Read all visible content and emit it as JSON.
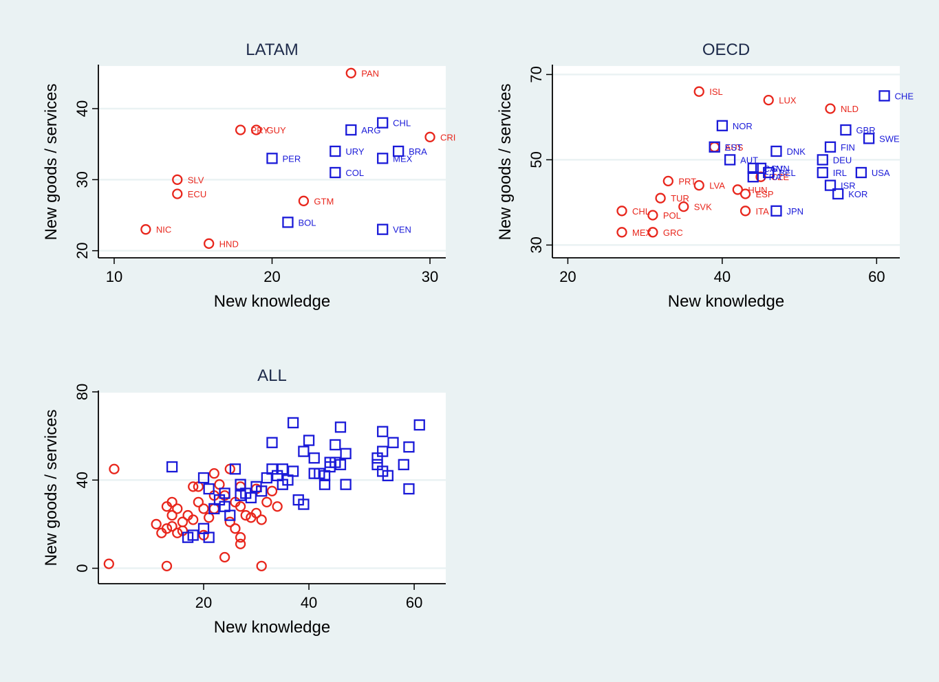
{
  "colors": {
    "background": "#eaf2f3",
    "plot_background": "#ffffff",
    "grid": "#eaf2f3",
    "circle_series": "#e8261c",
    "square_series": "#1a1ad8"
  },
  "chart_data": [
    {
      "type": "scatter",
      "title": "LATAM",
      "xlabel": "New knowledge",
      "ylabel": "New goods / services",
      "xlim": [
        9,
        31
      ],
      "ylim": [
        19,
        46
      ],
      "xticks": [
        10,
        20,
        30
      ],
      "yticks": [
        20,
        30,
        40
      ],
      "grid": true,
      "series": [
        {
          "name": "circles",
          "marker": "circle",
          "points": [
            {
              "label": "PAN",
              "x": 25,
              "y": 45
            },
            {
              "label": "PRY",
              "x": 18,
              "y": 37
            },
            {
              "label": "GUY",
              "x": 19,
              "y": 37
            },
            {
              "label": "CRI",
              "x": 30,
              "y": 36
            },
            {
              "label": "SLV",
              "x": 14,
              "y": 30
            },
            {
              "label": "ECU",
              "x": 14,
              "y": 28
            },
            {
              "label": "GTM",
              "x": 22,
              "y": 27
            },
            {
              "label": "NIC",
              "x": 12,
              "y": 23
            },
            {
              "label": "HND",
              "x": 16,
              "y": 21
            }
          ]
        },
        {
          "name": "squares",
          "marker": "square",
          "points": [
            {
              "label": "CHL",
              "x": 27,
              "y": 38
            },
            {
              "label": "ARG",
              "x": 25,
              "y": 37
            },
            {
              "label": "URY",
              "x": 24,
              "y": 34
            },
            {
              "label": "BRA",
              "x": 28,
              "y": 34
            },
            {
              "label": "PER",
              "x": 20,
              "y": 33
            },
            {
              "label": "MEX",
              "x": 27,
              "y": 33
            },
            {
              "label": "COL",
              "x": 24,
              "y": 31
            },
            {
              "label": "BOL",
              "x": 21,
              "y": 24
            },
            {
              "label": "VEN",
              "x": 27,
              "y": 23
            }
          ]
        }
      ]
    },
    {
      "type": "scatter",
      "title": "OECD",
      "xlabel": "New knowledge",
      "ylabel": "New goods / services",
      "xlim": [
        18,
        63
      ],
      "ylim": [
        27,
        72
      ],
      "xticks": [
        20,
        40,
        60
      ],
      "yticks": [
        30,
        50,
        70
      ],
      "grid": true,
      "series": [
        {
          "name": "circles",
          "marker": "circle",
          "points": [
            {
              "label": "ISL",
              "x": 37,
              "y": 66
            },
            {
              "label": "LUX",
              "x": 46,
              "y": 64
            },
            {
              "label": "NLD",
              "x": 54,
              "y": 62
            },
            {
              "label": "AUS",
              "x": 39,
              "y": 53
            },
            {
              "label": "CZE",
              "x": 45,
              "y": 46
            },
            {
              "label": "PRT",
              "x": 33,
              "y": 45
            },
            {
              "label": "LVA",
              "x": 37,
              "y": 44
            },
            {
              "label": "HUN",
              "x": 42,
              "y": 43
            },
            {
              "label": "ESP",
              "x": 43,
              "y": 42
            },
            {
              "label": "TUR",
              "x": 32,
              "y": 41
            },
            {
              "label": "SVK",
              "x": 35,
              "y": 39
            },
            {
              "label": "CHL",
              "x": 27,
              "y": 38
            },
            {
              "label": "ITA",
              "x": 43,
              "y": 38
            },
            {
              "label": "POL",
              "x": 31,
              "y": 37
            },
            {
              "label": "MEX",
              "x": 27,
              "y": 33
            },
            {
              "label": "GRC",
              "x": 31,
              "y": 33
            }
          ]
        },
        {
          "name": "squares",
          "marker": "square",
          "points": [
            {
              "label": "CHE",
              "x": 61,
              "y": 65
            },
            {
              "label": "NOR",
              "x": 40,
              "y": 58
            },
            {
              "label": "GBR",
              "x": 56,
              "y": 57
            },
            {
              "label": "SWE",
              "x": 59,
              "y": 55
            },
            {
              "label": "EST",
              "x": 39,
              "y": 53
            },
            {
              "label": "FIN",
              "x": 54,
              "y": 53
            },
            {
              "label": "DNK",
              "x": 47,
              "y": 52
            },
            {
              "label": "AUT",
              "x": 41,
              "y": 50
            },
            {
              "label": "DEU",
              "x": 53,
              "y": 50
            },
            {
              "label": "CAN",
              "x": 44,
              "y": 48
            },
            {
              "label": "SVN",
              "x": 45,
              "y": 48
            },
            {
              "label": "BEL",
              "x": 46,
              "y": 47
            },
            {
              "label": "IRL",
              "x": 53,
              "y": 47
            },
            {
              "label": "USA",
              "x": 58,
              "y": 47
            },
            {
              "label": "FRA",
              "x": 44,
              "y": 46
            },
            {
              "label": "ISR",
              "x": 54,
              "y": 44
            },
            {
              "label": "KOR",
              "x": 55,
              "y": 42
            },
            {
              "label": "JPN",
              "x": 47,
              "y": 38
            }
          ]
        }
      ]
    },
    {
      "type": "scatter",
      "title": "ALL",
      "xlabel": "New knowledge",
      "ylabel": "New goods / services",
      "xlim": [
        0,
        66
      ],
      "ylim": [
        -7,
        80
      ],
      "xticks": [
        20,
        40,
        60
      ],
      "yticks": [
        0,
        40,
        80
      ],
      "grid": true,
      "series": [
        {
          "name": "circles",
          "marker": "circle",
          "points": [
            {
              "x": 2,
              "y": 2
            },
            {
              "x": 3,
              "y": 45
            },
            {
              "x": 11,
              "y": 20
            },
            {
              "x": 12,
              "y": 16
            },
            {
              "x": 13,
              "y": 1
            },
            {
              "x": 13,
              "y": 18
            },
            {
              "x": 13,
              "y": 28
            },
            {
              "x": 14,
              "y": 30
            },
            {
              "x": 14,
              "y": 24
            },
            {
              "x": 15,
              "y": 27
            },
            {
              "x": 15,
              "y": 16
            },
            {
              "x": 16,
              "y": 21
            },
            {
              "x": 17,
              "y": 24
            },
            {
              "x": 18,
              "y": 22
            },
            {
              "x": 18,
              "y": 37
            },
            {
              "x": 19,
              "y": 30
            },
            {
              "x": 19,
              "y": 37
            },
            {
              "x": 20,
              "y": 15
            },
            {
              "x": 20,
              "y": 27
            },
            {
              "x": 21,
              "y": 23
            },
            {
              "x": 22,
              "y": 33
            },
            {
              "x": 22,
              "y": 27
            },
            {
              "x": 22,
              "y": 43
            },
            {
              "x": 23,
              "y": 38
            },
            {
              "x": 24,
              "y": 5
            },
            {
              "x": 24,
              "y": 33
            },
            {
              "x": 25,
              "y": 45
            },
            {
              "x": 25,
              "y": 21
            },
            {
              "x": 26,
              "y": 30
            },
            {
              "x": 27,
              "y": 37
            },
            {
              "x": 27,
              "y": 28
            },
            {
              "x": 27,
              "y": 14
            },
            {
              "x": 27,
              "y": 11
            },
            {
              "x": 28,
              "y": 24
            },
            {
              "x": 29,
              "y": 23
            },
            {
              "x": 30,
              "y": 36
            },
            {
              "x": 30,
              "y": 25
            },
            {
              "x": 31,
              "y": 1
            },
            {
              "x": 31,
              "y": 22
            },
            {
              "x": 32,
              "y": 30
            },
            {
              "x": 33,
              "y": 35
            },
            {
              "x": 34,
              "y": 28
            },
            {
              "x": 14,
              "y": 19
            },
            {
              "x": 16,
              "y": 17
            },
            {
              "x": 26,
              "y": 18
            }
          ]
        },
        {
          "name": "squares",
          "marker": "square",
          "points": [
            {
              "x": 14,
              "y": 46
            },
            {
              "x": 17,
              "y": 14
            },
            {
              "x": 18,
              "y": 15
            },
            {
              "x": 20,
              "y": 41
            },
            {
              "x": 20,
              "y": 18
            },
            {
              "x": 21,
              "y": 36
            },
            {
              "x": 21,
              "y": 14
            },
            {
              "x": 22,
              "y": 27
            },
            {
              "x": 23,
              "y": 31
            },
            {
              "x": 24,
              "y": 34
            },
            {
              "x": 24,
              "y": 28
            },
            {
              "x": 25,
              "y": 24
            },
            {
              "x": 26,
              "y": 45
            },
            {
              "x": 27,
              "y": 38
            },
            {
              "x": 27,
              "y": 33
            },
            {
              "x": 28,
              "y": 34
            },
            {
              "x": 29,
              "y": 32
            },
            {
              "x": 30,
              "y": 37
            },
            {
              "x": 31,
              "y": 35
            },
            {
              "x": 32,
              "y": 41
            },
            {
              "x": 33,
              "y": 57
            },
            {
              "x": 33,
              "y": 45
            },
            {
              "x": 34,
              "y": 42
            },
            {
              "x": 35,
              "y": 38
            },
            {
              "x": 35,
              "y": 45
            },
            {
              "x": 36,
              "y": 40
            },
            {
              "x": 37,
              "y": 66
            },
            {
              "x": 37,
              "y": 44
            },
            {
              "x": 38,
              "y": 31
            },
            {
              "x": 39,
              "y": 29
            },
            {
              "x": 39,
              "y": 53
            },
            {
              "x": 40,
              "y": 58
            },
            {
              "x": 41,
              "y": 50
            },
            {
              "x": 41,
              "y": 43
            },
            {
              "x": 42,
              "y": 43
            },
            {
              "x": 43,
              "y": 38
            },
            {
              "x": 43,
              "y": 42
            },
            {
              "x": 44,
              "y": 48
            },
            {
              "x": 44,
              "y": 46
            },
            {
              "x": 45,
              "y": 48
            },
            {
              "x": 45,
              "y": 56
            },
            {
              "x": 46,
              "y": 64
            },
            {
              "x": 46,
              "y": 47
            },
            {
              "x": 47,
              "y": 52
            },
            {
              "x": 47,
              "y": 38
            },
            {
              "x": 53,
              "y": 50
            },
            {
              "x": 53,
              "y": 47
            },
            {
              "x": 54,
              "y": 62
            },
            {
              "x": 54,
              "y": 44
            },
            {
              "x": 54,
              "y": 53
            },
            {
              "x": 55,
              "y": 42
            },
            {
              "x": 56,
              "y": 57
            },
            {
              "x": 58,
              "y": 47
            },
            {
              "x": 59,
              "y": 55
            },
            {
              "x": 59,
              "y": 36
            },
            {
              "x": 61,
              "y": 65
            }
          ]
        }
      ]
    }
  ]
}
